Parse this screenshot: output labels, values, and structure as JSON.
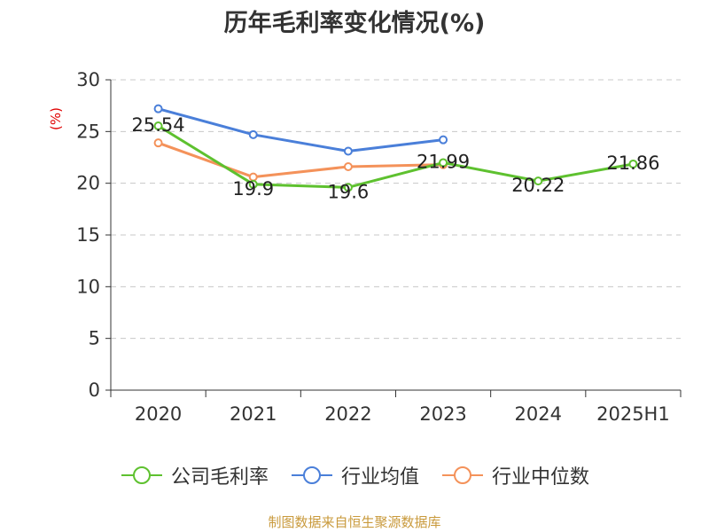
{
  "title": "历年毛利率变化情况(%)",
  "source_text": "制图数据来自恒生聚源数据库",
  "colors": {
    "company": "#5ec12f",
    "industry_avg": "#4a7fd9",
    "industry_median": "#f4925a",
    "grid": "#c8c8c8",
    "axis": "#333333"
  },
  "chart_data": {
    "type": "line",
    "title": "历年毛利率变化情况(%)",
    "xlabel": "",
    "ylabel": "(%)",
    "ylim": [
      0,
      30
    ],
    "yticks": [
      0,
      5,
      10,
      15,
      20,
      25,
      30
    ],
    "grid": true,
    "legend_position": "bottom",
    "categories": [
      "2020",
      "2021",
      "2022",
      "2023",
      "2024",
      "2025H1"
    ],
    "series": [
      {
        "name": "公司毛利率",
        "color": "#5ec12f",
        "values": [
          25.54,
          19.9,
          19.6,
          21.99,
          20.22,
          21.86
        ],
        "labels": [
          "25.54",
          "19.9",
          "19.6",
          "21.99",
          "20.22",
          "21.86"
        ]
      },
      {
        "name": "行业均值",
        "color": "#4a7fd9",
        "values": [
          27.2,
          24.7,
          23.1,
          24.2,
          null,
          null
        ]
      },
      {
        "name": "行业中位数",
        "color": "#f4925a",
        "values": [
          23.9,
          20.6,
          21.6,
          21.8,
          null,
          null
        ]
      }
    ]
  }
}
